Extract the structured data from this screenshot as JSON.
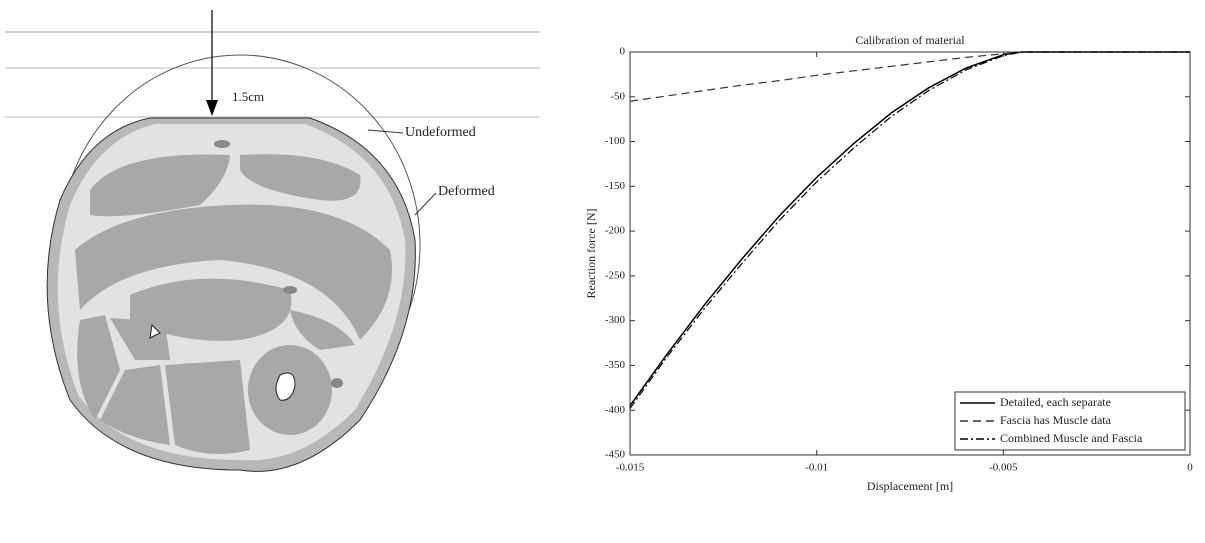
{
  "diagram": {
    "dimension": "1.5cm",
    "labels": [
      "Undeformed",
      "Deformed"
    ]
  },
  "chart_data": {
    "type": "line",
    "title": "Calibration of material",
    "x_label": "Displacement [m]",
    "y_label": "Reaction force [N]",
    "x": [
      -0.015,
      -0.014,
      -0.013,
      -0.012,
      -0.011,
      -0.01,
      -0.009,
      -0.008,
      -0.007,
      -0.006,
      -0.005,
      -0.0045,
      0
    ],
    "series": [
      {
        "name": "Detailed, each separate",
        "color": "#000000",
        "style": "solid",
        "values": [
          -395,
          -337,
          -282,
          -231,
          -183,
          -140,
          -102,
          -68,
          -40,
          -18,
          -3,
          0,
          0
        ]
      },
      {
        "name": "Fascia has Muscle data",
        "color": "#333333",
        "style": "dashed",
        "values": [
          -55,
          -49,
          -43,
          -37,
          -32,
          -26,
          -21,
          -16,
          -11,
          -6,
          -2,
          0,
          0
        ]
      },
      {
        "name": "Combined Muscle and Fascia",
        "color": "#000000",
        "style": "dashdot",
        "values": [
          -398,
          -340,
          -286,
          -236,
          -188,
          -145,
          -107,
          -72,
          -43,
          -20,
          -4,
          0,
          0
        ]
      }
    ],
    "xlim": [
      -0.015,
      0
    ],
    "xticks": [
      -0.015,
      -0.01,
      -0.005,
      0
    ],
    "ylim": [
      -450,
      0
    ],
    "yticks": [
      0,
      -50,
      -100,
      -150,
      -200,
      -250,
      -300,
      -350,
      -400,
      -450
    ],
    "grid": false,
    "legend": "lower right"
  }
}
